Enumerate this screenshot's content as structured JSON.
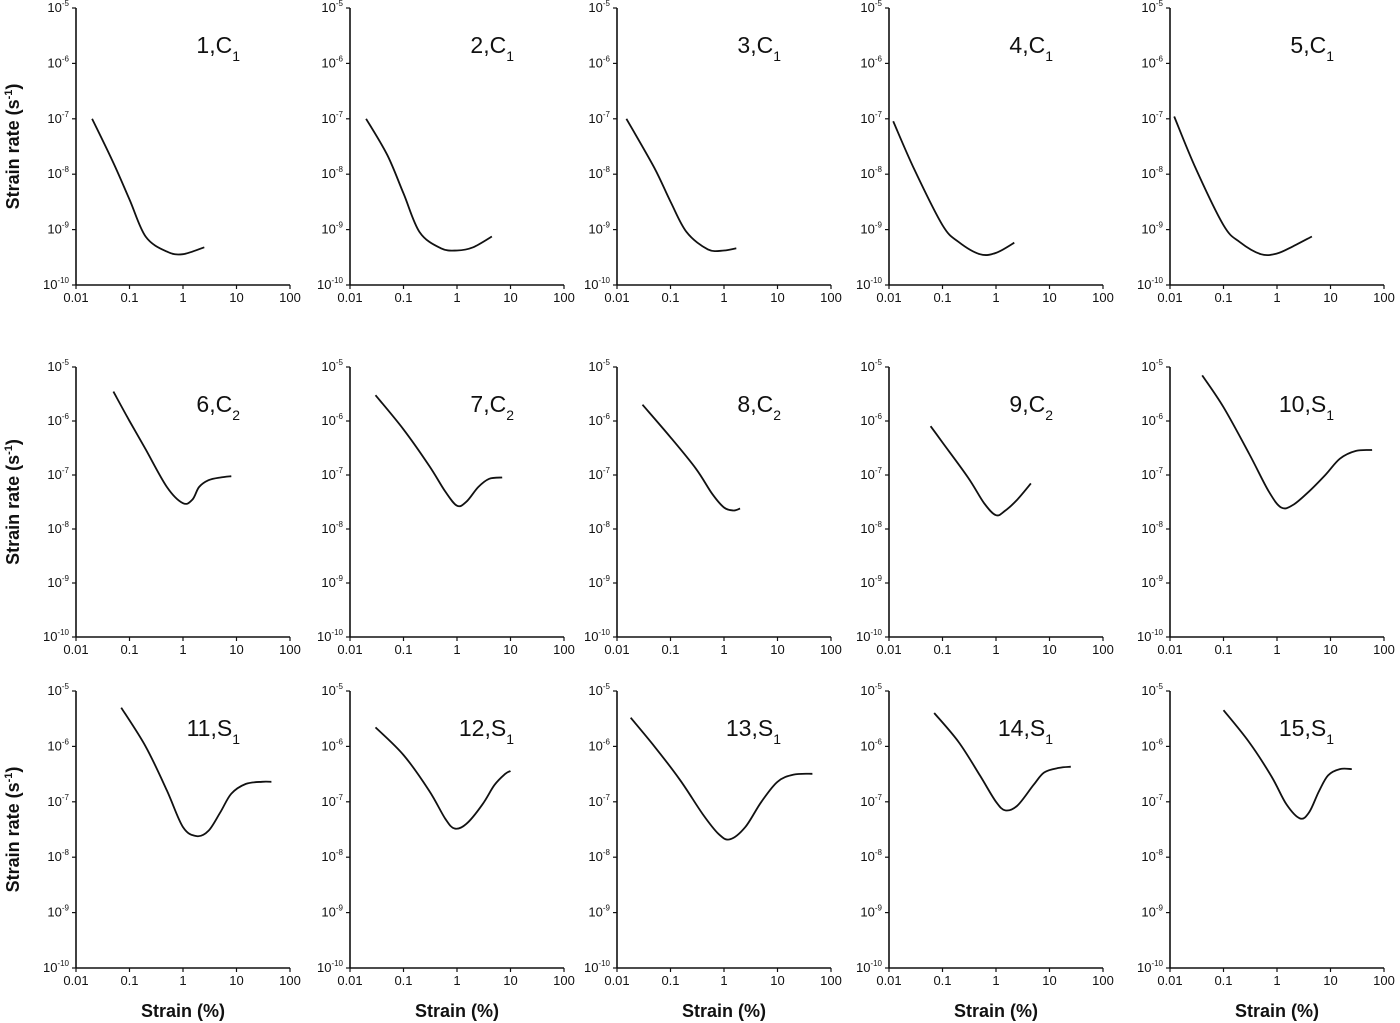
{
  "chart_data": {
    "type": "line",
    "layout": "3x5 grid of log-log panels",
    "xlabel": "Strain (%)",
    "ylabel": "Strain rate (s",
    "ylabel_sup": "-1",
    "ylabel_close": ")",
    "x_scale": "log",
    "y_scale": "log",
    "xlim": [
      0.01,
      100
    ],
    "ylim": [
      1e-10,
      1e-05
    ],
    "x_tick_labels": [
      "0.01",
      "0.1",
      "1",
      "10",
      "100"
    ],
    "y_tick_base": "10",
    "y_tick_exponents": [
      "-5",
      "-6",
      "-7",
      "-8",
      "-9",
      "-10"
    ],
    "panels": [
      {
        "label_num": "1",
        "label_letter": "C",
        "label_sub": "1",
        "x": [
          0.02,
          0.05,
          0.1,
          0.2,
          0.5,
          1,
          2.5
        ],
        "y": [
          1e-07,
          1.6e-08,
          3.5e-09,
          7.5e-10,
          4e-10,
          3.6e-10,
          4.8e-10
        ]
      },
      {
        "label_num": "2",
        "label_letter": "C",
        "label_sub": "1",
        "x": [
          0.02,
          0.05,
          0.1,
          0.2,
          0.5,
          1,
          2,
          4.5
        ],
        "y": [
          1e-07,
          2.2e-08,
          4.5e-09,
          9e-10,
          4.6e-10,
          4.2e-10,
          4.8e-10,
          7.5e-10
        ]
      },
      {
        "label_num": "3",
        "label_letter": "C",
        "label_sub": "1",
        "x": [
          0.015,
          0.05,
          0.1,
          0.2,
          0.5,
          1,
          1.7
        ],
        "y": [
          1e-07,
          1.3e-08,
          3.2e-09,
          9e-10,
          4.4e-10,
          4.2e-10,
          4.6e-10
        ]
      },
      {
        "label_num": "4",
        "label_letter": "C",
        "label_sub": "1",
        "x": [
          0.012,
          0.03,
          0.1,
          0.2,
          0.5,
          1,
          2.2
        ],
        "y": [
          9e-08,
          1.2e-08,
          1.2e-09,
          6e-10,
          3.6e-10,
          3.8e-10,
          5.8e-10
        ]
      },
      {
        "label_num": "5",
        "label_letter": "C",
        "label_sub": "1",
        "x": [
          0.012,
          0.03,
          0.1,
          0.2,
          0.5,
          1,
          2,
          4.5
        ],
        "y": [
          1.1e-07,
          1.3e-08,
          1.2e-09,
          6e-10,
          3.6e-10,
          3.7e-10,
          5e-10,
          7.5e-10
        ]
      },
      {
        "label_num": "6",
        "label_letter": "C",
        "label_sub": "2",
        "x": [
          0.05,
          0.1,
          0.2,
          0.5,
          1,
          1.5,
          2,
          3,
          5,
          8
        ],
        "y": [
          3.5e-06,
          1e-06,
          3e-07,
          6e-08,
          3e-08,
          3.5e-08,
          6e-08,
          8e-08,
          9e-08,
          9.5e-08
        ]
      },
      {
        "label_num": "7",
        "label_letter": "C",
        "label_sub": "2",
        "x": [
          0.03,
          0.1,
          0.3,
          0.6,
          1,
          1.5,
          2.5,
          4,
          7
        ],
        "y": [
          3e-06,
          7e-07,
          1.5e-07,
          5e-08,
          2.7e-08,
          3.2e-08,
          6e-08,
          8.5e-08,
          9e-08
        ]
      },
      {
        "label_num": "8",
        "label_letter": "C",
        "label_sub": "2",
        "x": [
          0.03,
          0.1,
          0.3,
          0.6,
          1,
          1.5,
          2
        ],
        "y": [
          2e-06,
          5e-07,
          1.3e-07,
          4.5e-08,
          2.5e-08,
          2.2e-08,
          2.4e-08
        ]
      },
      {
        "label_num": "9",
        "label_letter": "C",
        "label_sub": "2",
        "x": [
          0.06,
          0.1,
          0.3,
          0.6,
          1,
          1.5,
          2.5,
          4.5
        ],
        "y": [
          8e-07,
          4e-07,
          9e-08,
          3e-08,
          1.8e-08,
          2.2e-08,
          3.5e-08,
          7e-08
        ]
      },
      {
        "label_num": "10",
        "label_letter": "S",
        "label_sub": "1",
        "x": [
          0.04,
          0.1,
          0.3,
          0.7,
          1.2,
          2,
          4,
          8,
          15,
          30,
          60
        ],
        "y": [
          7e-06,
          1.8e-06,
          2.5e-07,
          5e-08,
          2.5e-08,
          2.8e-08,
          5e-08,
          1e-07,
          2e-07,
          2.8e-07,
          2.9e-07
        ]
      },
      {
        "label_num": "11",
        "label_letter": "S",
        "label_sub": "1",
        "x": [
          0.07,
          0.2,
          0.5,
          1,
          1.8,
          3,
          5,
          8,
          15,
          30,
          45
        ],
        "y": [
          5e-06,
          1e-06,
          1.6e-07,
          3.5e-08,
          2.4e-08,
          3e-08,
          6.5e-08,
          1.4e-07,
          2.1e-07,
          2.3e-07,
          2.3e-07
        ]
      },
      {
        "label_num": "12",
        "label_letter": "S",
        "label_sub": "1",
        "x": [
          0.03,
          0.1,
          0.3,
          0.6,
          0.9,
          1.5,
          3,
          5,
          8,
          10
        ],
        "y": [
          2.2e-06,
          7e-07,
          1.6e-07,
          5e-08,
          3.3e-08,
          4e-08,
          9e-08,
          2e-07,
          3.2e-07,
          3.6e-07
        ]
      },
      {
        "label_num": "13",
        "label_letter": "S",
        "label_sub": "1",
        "x": [
          0.018,
          0.05,
          0.15,
          0.4,
          0.8,
          1.3,
          2.5,
          5,
          10,
          20,
          45
        ],
        "y": [
          3.3e-06,
          1e-06,
          2.5e-07,
          6e-08,
          2.6e-08,
          2.1e-08,
          3.5e-08,
          1e-07,
          2.3e-07,
          3.1e-07,
          3.2e-07
        ]
      },
      {
        "label_num": "14",
        "label_letter": "S",
        "label_sub": "1",
        "x": [
          0.07,
          0.2,
          0.5,
          1,
          1.5,
          2.5,
          5,
          8,
          15,
          25
        ],
        "y": [
          4e-06,
          1.2e-06,
          3e-07,
          1e-07,
          7e-08,
          8.5e-08,
          2e-07,
          3.4e-07,
          4.1e-07,
          4.3e-07
        ]
      },
      {
        "label_num": "15",
        "label_letter": "S",
        "label_sub": "1",
        "x": [
          0.1,
          0.3,
          0.8,
          1.5,
          2.7,
          4,
          6,
          9,
          15,
          25
        ],
        "y": [
          4.5e-06,
          1.2e-06,
          2.8e-07,
          9e-08,
          5e-08,
          6.5e-08,
          1.5e-07,
          3e-07,
          3.9e-07,
          3.9e-07
        ]
      }
    ]
  }
}
